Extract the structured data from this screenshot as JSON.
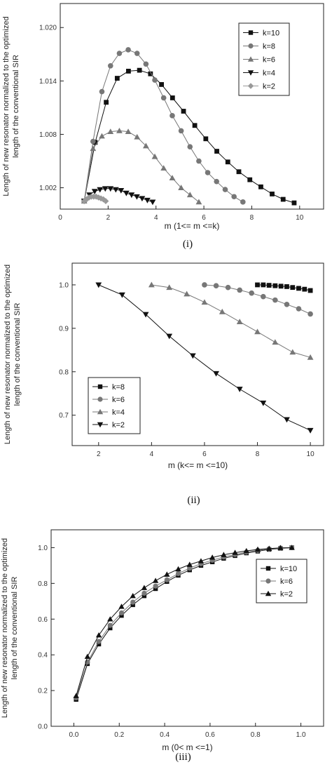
{
  "chart_data": [
    {
      "type": "line",
      "caption": "(i)",
      "xlabel": "m (1<= m <=k)",
      "ylabel_line1": "Length of new resonator normalized to the optimized",
      "ylabel_line2": "length of the conventional SIR",
      "xlim": [
        0,
        11
      ],
      "ylim": [
        0.9996,
        1.0227
      ],
      "xticks": [
        0,
        2,
        4,
        6,
        8,
        10
      ],
      "xtick_labels": [
        "0",
        "2",
        "4",
        "6",
        "8",
        "10"
      ],
      "yticks": [
        1.002,
        1.008,
        1.014,
        1.02
      ],
      "ytick_labels": [
        "1.002",
        "1.008",
        "1.014",
        "1.020"
      ],
      "legend_position": "top-right",
      "series": [
        {
          "name": "k=10",
          "marker": "square",
          "color": "#111111",
          "x": [
            1.0,
            1.46,
            1.92,
            2.38,
            2.85,
            3.31,
            3.77,
            4.23,
            4.69,
            5.15,
            5.62,
            6.08,
            6.54,
            7.0,
            7.46,
            7.92,
            8.38,
            8.85,
            9.31,
            9.77
          ],
          "y": [
            1.0005,
            1.0071,
            1.0116,
            1.0143,
            1.0151,
            1.0152,
            1.0148,
            1.0136,
            1.0121,
            1.0106,
            1.009,
            1.0075,
            1.0061,
            1.0049,
            1.0038,
            1.0029,
            1.0021,
            1.0013,
            1.0007,
            1.0003
          ]
        },
        {
          "name": "k=8",
          "marker": "circle",
          "color": "#777777",
          "x": [
            1.0,
            1.37,
            1.74,
            2.1,
            2.47,
            2.84,
            3.21,
            3.58,
            3.95,
            4.32,
            4.68,
            5.05,
            5.42,
            5.79,
            6.16,
            6.53,
            6.89,
            7.26,
            7.63
          ],
          "y": [
            1.0005,
            1.0072,
            1.0128,
            1.0157,
            1.0171,
            1.0175,
            1.0171,
            1.0159,
            1.0141,
            1.0121,
            1.0101,
            1.0084,
            1.0066,
            1.005,
            1.0037,
            1.0027,
            1.0018,
            1.001,
            1.0004
          ]
        },
        {
          "name": "k=6",
          "marker": "triangle-up",
          "color": "#777777",
          "x": [
            1.0,
            1.37,
            1.74,
            2.1,
            2.47,
            2.84,
            3.21,
            3.58,
            3.95,
            4.32,
            4.68,
            5.05,
            5.42,
            5.79
          ],
          "y": [
            1.0005,
            1.0064,
            1.0078,
            1.0083,
            1.0084,
            1.0083,
            1.0077,
            1.0067,
            1.0055,
            1.0042,
            1.0031,
            1.002,
            1.0012,
            1.0004
          ]
        },
        {
          "name": "k=4",
          "marker": "triangle-down",
          "color": "#111111",
          "x": [
            1.0,
            1.22,
            1.44,
            1.66,
            1.88,
            2.1,
            2.32,
            2.54,
            2.76,
            2.98,
            3.2,
            3.42,
            3.64,
            3.86
          ],
          "y": [
            1.0005,
            1.0012,
            1.0016,
            1.0018,
            1.0019,
            1.0019,
            1.0018,
            1.0017,
            1.0014,
            1.0012,
            1.001,
            1.0008,
            1.0006,
            1.0004
          ]
        },
        {
          "name": "k=2",
          "marker": "diamond",
          "color": "#999999",
          "x": [
            1.0,
            1.1,
            1.2,
            1.3,
            1.4,
            1.5,
            1.6,
            1.7,
            1.8,
            1.9
          ],
          "y": [
            1.0005,
            1.0007,
            1.0009,
            1.001,
            1.001,
            1.001,
            1.0009,
            1.0008,
            1.0007,
            1.0005
          ]
        }
      ]
    },
    {
      "type": "line",
      "caption": "(ii)",
      "xlabel": "m (k<= m <=10)",
      "ylabel_line1": "Length of new resonator normalized to the optimized",
      "ylabel_line2": "length of the conventional SIR",
      "xlim": [
        1,
        10.5
      ],
      "ylim": [
        0.63,
        1.05
      ],
      "xticks": [
        2,
        4,
        6,
        8,
        10
      ],
      "xtick_labels": [
        "2",
        "4",
        "6",
        "8",
        "10"
      ],
      "yticks": [
        0.7,
        0.8,
        0.9,
        1.0
      ],
      "ytick_labels": [
        "0.7",
        "0.8",
        "0.9",
        "1.0"
      ],
      "legend_position": "bottom-left",
      "series": [
        {
          "name": "k=8",
          "marker": "square",
          "color": "#111111",
          "x": [
            8.0,
            8.22,
            8.44,
            8.67,
            8.89,
            9.11,
            9.33,
            9.56,
            9.78,
            10.0
          ],
          "y": [
            1.0,
            1.0,
            0.999,
            0.998,
            0.997,
            0.996,
            0.994,
            0.992,
            0.99,
            0.987
          ]
        },
        {
          "name": "k=6",
          "marker": "circle",
          "color": "#777777",
          "x": [
            6.0,
            6.44,
            6.89,
            7.33,
            7.78,
            8.22,
            8.67,
            9.11,
            9.56,
            10.0
          ],
          "y": [
            1.0,
            0.998,
            0.994,
            0.988,
            0.981,
            0.973,
            0.965,
            0.955,
            0.945,
            0.933
          ]
        },
        {
          "name": "k=4",
          "marker": "triangle-up",
          "color": "#777777",
          "x": [
            4.0,
            4.67,
            5.33,
            6.0,
            6.67,
            7.33,
            8.0,
            8.67,
            9.33,
            10.0
          ],
          "y": [
            1.0,
            0.994,
            0.979,
            0.96,
            0.938,
            0.915,
            0.892,
            0.868,
            0.845,
            0.833
          ]
        },
        {
          "name": "k=2",
          "marker": "triangle-down",
          "color": "#111111",
          "x": [
            2.0,
            2.89,
            3.78,
            4.67,
            5.56,
            6.44,
            7.33,
            8.22,
            9.11,
            10.0
          ],
          "y": [
            1.0,
            0.977,
            0.932,
            0.882,
            0.837,
            0.796,
            0.76,
            0.728,
            0.69,
            0.665
          ]
        }
      ]
    },
    {
      "type": "line",
      "caption": "(iii)",
      "xlabel": "m (0< m <=1)",
      "ylabel_line1": "Length of new resonator normalized to the optimized",
      "ylabel_line2": "length of the conventional SIR",
      "xlim": [
        -0.1,
        1.1
      ],
      "ylim": [
        0.0,
        1.1
      ],
      "xticks": [
        0.0,
        0.2,
        0.4,
        0.6,
        0.8,
        1.0
      ],
      "xtick_labels": [
        "0.0",
        "0.2",
        "0.4",
        "0.6",
        "0.8",
        "1.0"
      ],
      "yticks": [
        0.0,
        0.2,
        0.4,
        0.6,
        0.8,
        1.0
      ],
      "ytick_labels": [
        "0.0",
        "0.2",
        "0.4",
        "0.6",
        "0.8",
        "1.0"
      ],
      "legend_position": "right",
      "series": [
        {
          "name": "k=10",
          "marker": "square",
          "color": "#111111",
          "x": [
            0.01,
            0.06,
            0.11,
            0.16,
            0.21,
            0.26,
            0.31,
            0.36,
            0.41,
            0.46,
            0.51,
            0.56,
            0.61,
            0.66,
            0.71,
            0.76,
            0.81,
            0.86,
            0.91,
            0.96
          ],
          "y": [
            0.15,
            0.35,
            0.46,
            0.55,
            0.62,
            0.68,
            0.73,
            0.77,
            0.81,
            0.845,
            0.875,
            0.9,
            0.92,
            0.94,
            0.955,
            0.97,
            0.98,
            0.99,
            0.996,
            1.0
          ]
        },
        {
          "name": "k=6",
          "marker": "circle",
          "color": "#777777",
          "x": [
            0.01,
            0.06,
            0.11,
            0.16,
            0.21,
            0.26,
            0.31,
            0.36,
            0.41,
            0.46,
            0.51,
            0.56,
            0.61,
            0.66,
            0.71,
            0.76,
            0.81,
            0.86,
            0.91,
            0.96
          ],
          "y": [
            0.16,
            0.36,
            0.475,
            0.565,
            0.635,
            0.695,
            0.745,
            0.785,
            0.82,
            0.855,
            0.885,
            0.91,
            0.93,
            0.948,
            0.962,
            0.975,
            0.985,
            0.993,
            0.998,
            1.0
          ]
        },
        {
          "name": "k=2",
          "marker": "triangle-up",
          "color": "#111111",
          "x": [
            0.01,
            0.06,
            0.11,
            0.16,
            0.21,
            0.26,
            0.31,
            0.36,
            0.41,
            0.46,
            0.51,
            0.56,
            0.61,
            0.66,
            0.71,
            0.76,
            0.81,
            0.86,
            0.91,
            0.96
          ],
          "y": [
            0.17,
            0.39,
            0.51,
            0.6,
            0.67,
            0.73,
            0.775,
            0.815,
            0.85,
            0.88,
            0.905,
            0.925,
            0.945,
            0.96,
            0.972,
            0.982,
            0.99,
            0.995,
            0.999,
            1.0
          ]
        }
      ]
    }
  ]
}
